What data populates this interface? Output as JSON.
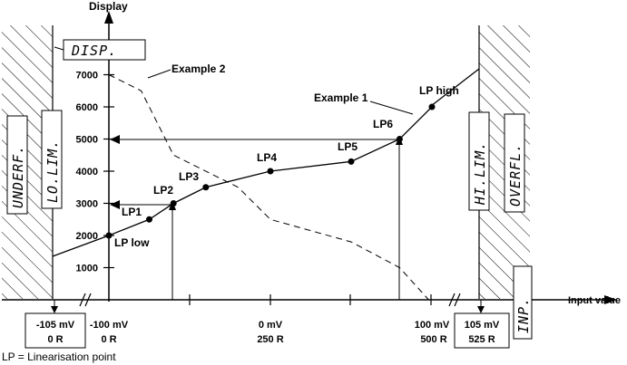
{
  "axis": {
    "y_title": "Display",
    "x_title": "Input value",
    "y_ticks": [
      1000,
      2000,
      3000,
      4000,
      5000,
      6000,
      7000
    ],
    "y_tick_labels": [
      "1000",
      "2000",
      "3000",
      "4000",
      "5000",
      "6000",
      "7000"
    ]
  },
  "displays": {
    "disp": "DISP.",
    "underf": "UNDERF.",
    "lolim": "LO.LIM.",
    "hilim": "HI.LIM.",
    "overfl": "OVERFL.",
    "inp": "INP."
  },
  "labels": {
    "example1": "Example 1",
    "example2": "Example 2"
  },
  "bottom_boxes": [
    {
      "line1": "-105 mV",
      "line2": "0 R"
    },
    {
      "line1": "105 mV",
      "line2": "525 R"
    }
  ],
  "bottom_labels": [
    {
      "line1": "-100 mV",
      "line2": "0 R"
    },
    {
      "line1": "0 mV",
      "line2": "250 R"
    },
    {
      "line1": "100 mV",
      "line2": "500 R"
    }
  ],
  "footnote": "LP = Linearisation point",
  "chart_data": {
    "type": "line",
    "series": [
      {
        "name": "Example 1",
        "points": [
          {
            "label": "LP low",
            "x": -100,
            "y": 2000
          },
          {
            "label": "LP1",
            "x": -75,
            "y": 2500
          },
          {
            "label": "LP2",
            "x": -60,
            "y": 3000
          },
          {
            "label": "LP3",
            "x": -40,
            "y": 3500
          },
          {
            "label": "LP4",
            "x": 0,
            "y": 4000
          },
          {
            "label": "LP5",
            "x": 50,
            "y": 4300
          },
          {
            "label": "LP6",
            "x": 80,
            "y": 5000
          },
          {
            "label": "LP high",
            "x": 100,
            "y": 6000
          }
        ]
      },
      {
        "name": "Example 2",
        "points": [
          {
            "x": -100,
            "y": 7000
          },
          {
            "x": -80,
            "y": 6500
          },
          {
            "x": -60,
            "y": 4500
          },
          {
            "x": -20,
            "y": 3500
          },
          {
            "x": 0,
            "y": 2500
          },
          {
            "x": 50,
            "y": 1800
          },
          {
            "x": 80,
            "y": 1000
          },
          {
            "x": 98,
            "y": 0
          }
        ]
      }
    ]
  }
}
